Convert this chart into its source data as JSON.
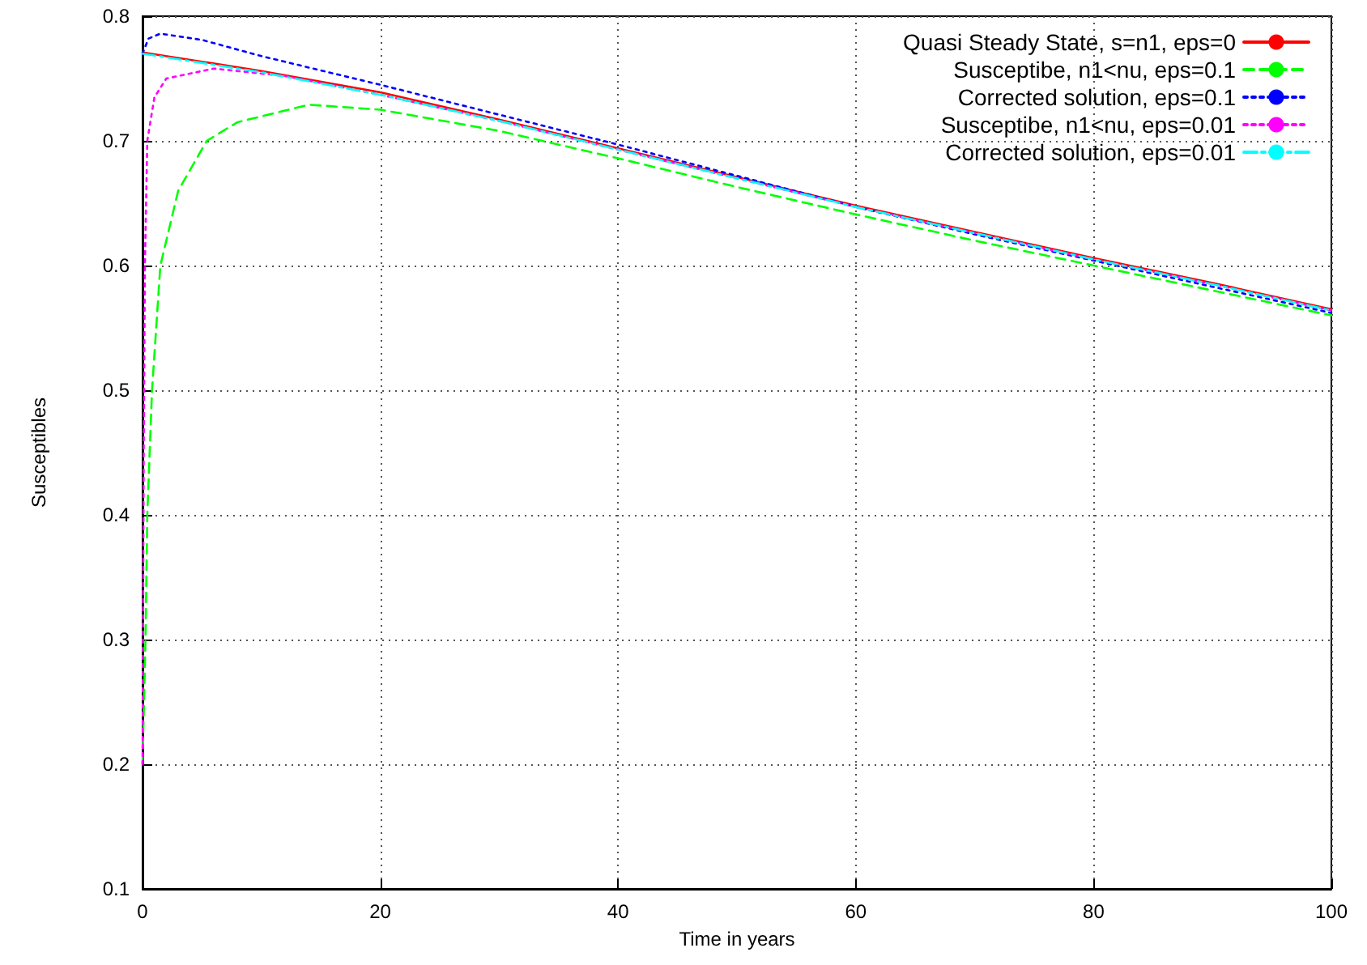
{
  "chart_data": {
    "type": "line",
    "xlabel": "Time in years",
    "ylabel": "Susceptibles",
    "xlim": [
      0,
      100
    ],
    "ylim": [
      0.1,
      0.8
    ],
    "xticks": [
      0,
      20,
      40,
      60,
      80,
      100
    ],
    "yticks": [
      0.1,
      0.2,
      0.3,
      0.4,
      0.5,
      0.6,
      0.7,
      0.8
    ],
    "grid": true,
    "legend": "top right",
    "marker": "none",
    "series": [
      {
        "name": "Quasi Steady State, s=n1, eps=0",
        "color": "#ff0000",
        "line_style": "solid",
        "x": [
          0,
          10,
          20,
          30,
          40,
          50,
          60,
          70,
          80,
          90,
          100
        ],
        "values": [
          0.771,
          0.756,
          0.739,
          0.717,
          0.694,
          0.671,
          0.648,
          0.627,
          0.606,
          0.586,
          0.565
        ]
      },
      {
        "name": "Susceptibe, n1<nu, eps=0.1",
        "color": "#00ff00",
        "line_style": "dashed",
        "x": [
          0,
          0.25,
          0.4,
          0.8,
          1.5,
          3,
          5.4,
          8,
          14,
          20,
          30,
          40,
          50,
          60,
          70,
          80,
          90,
          100
        ],
        "values": [
          0.2,
          0.3,
          0.4,
          0.5,
          0.6,
          0.66,
          0.7,
          0.715,
          0.729,
          0.725,
          0.708,
          0.686,
          0.663,
          0.641,
          0.62,
          0.6,
          0.58,
          0.56
        ]
      },
      {
        "name": "Corrected solution, eps=0.1",
        "color": "#0000ff",
        "line_style": "dotted",
        "x": [
          0,
          0.5,
          1.5,
          5,
          10,
          20,
          30,
          40,
          50,
          60,
          70,
          80,
          90,
          100
        ],
        "values": [
          0.77,
          0.782,
          0.786,
          0.781,
          0.768,
          0.745,
          0.721,
          0.697,
          0.672,
          0.647,
          0.625,
          0.604,
          0.583,
          0.562
        ]
      },
      {
        "name": "Susceptibe, n1<nu, eps=0.01",
        "color": "#ff00ff",
        "line_style": "dotted",
        "x": [
          0,
          0.1,
          0.2,
          0.4,
          1,
          2,
          6,
          12,
          20,
          30,
          40,
          50,
          60,
          70,
          80,
          90,
          100
        ],
        "values": [
          0.2,
          0.45,
          0.6,
          0.7,
          0.735,
          0.75,
          0.758,
          0.752,
          0.737,
          0.716,
          0.693,
          0.67,
          0.647,
          0.626,
          0.605,
          0.585,
          0.564
        ]
      },
      {
        "name": "Corrected solution, eps=0.01",
        "color": "#00ffff",
        "line_style": "dashdot",
        "x": [
          0,
          10,
          20,
          30,
          40,
          50,
          60,
          70,
          80,
          90,
          100
        ],
        "values": [
          0.77,
          0.755,
          0.737,
          0.716,
          0.693,
          0.67,
          0.647,
          0.626,
          0.605,
          0.585,
          0.564
        ]
      }
    ]
  }
}
